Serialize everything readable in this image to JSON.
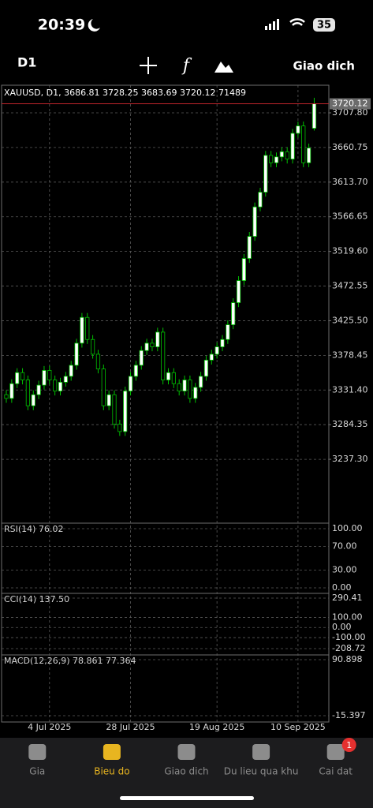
{
  "status_bar": {
    "time": "20:39",
    "battery": "35"
  },
  "toolbar": {
    "timeframe": "D1",
    "action": "Giao dich"
  },
  "chart_data": {
    "type": "candlestick",
    "title": "XAUUSD, D1, 3686.81 3728.25 3683.69 3720.12 71489",
    "categories": [
      null,
      null,
      null,
      null,
      null,
      null,
      null,
      null,
      "4 Jul 2025",
      null,
      null,
      null,
      null,
      null,
      null,
      null,
      null,
      null,
      null,
      null,
      null,
      null,
      null,
      "28 Jul 2025",
      null,
      null,
      null,
      null,
      null,
      null,
      null,
      null,
      null,
      null,
      null,
      null,
      null,
      null,
      null,
      "19 Aug 2025",
      null,
      null,
      null,
      null,
      null,
      null,
      null,
      null,
      null,
      null,
      null,
      null,
      null,
      null,
      "10 Sep 2025",
      null,
      null,
      null
    ],
    "open": [
      3325,
      3320,
      3340,
      3355,
      3345,
      3310,
      3325,
      3338,
      3358,
      3345,
      3330,
      3342,
      3350,
      3365,
      3395,
      3430,
      3400,
      3380,
      3360,
      3310,
      3325,
      3285,
      3275,
      3330,
      3350,
      3365,
      3385,
      3395,
      3390,
      3410,
      3345,
      3355,
      3340,
      3330,
      3345,
      3320,
      3335,
      3350,
      3372,
      3380,
      3390,
      3400,
      3420,
      3450,
      3480,
      3510,
      3540,
      3580,
      3600,
      3650,
      3640,
      3648,
      3655,
      3645,
      3680,
      3690,
      3640,
      3686.81
    ],
    "high": [
      3331,
      3346,
      3361,
      3361,
      3351,
      3331,
      3344,
      3364,
      3364,
      3351,
      3348,
      3356,
      3371,
      3401,
      3436,
      3436,
      3406,
      3386,
      3366,
      3331,
      3331,
      3291,
      3336,
      3356,
      3371,
      3391,
      3401,
      3401,
      3416,
      3416,
      3361,
      3361,
      3346,
      3351,
      3351,
      3341,
      3356,
      3378,
      3386,
      3396,
      3406,
      3426,
      3456,
      3486,
      3516,
      3546,
      3586,
      3606,
      3656,
      3656,
      3654,
      3661,
      3661,
      3686,
      3696,
      3696,
      3666,
      3728.25
    ],
    "low": [
      3314,
      3314,
      3334,
      3339,
      3304,
      3304,
      3319,
      3332,
      3339,
      3324,
      3324,
      3336,
      3344,
      3359,
      3389,
      3394,
      3374,
      3354,
      3304,
      3304,
      3279,
      3269,
      3269,
      3324,
      3344,
      3359,
      3379,
      3384,
      3384,
      3339,
      3339,
      3334,
      3324,
      3324,
      3314,
      3314,
      3329,
      3344,
      3366,
      3374,
      3384,
      3394,
      3414,
      3444,
      3474,
      3504,
      3534,
      3574,
      3594,
      3634,
      3634,
      3642,
      3639,
      3639,
      3674,
      3634,
      3634,
      3683.69
    ],
    "close": [
      3320,
      3340,
      3355,
      3345,
      3310,
      3325,
      3338,
      3358,
      3345,
      3330,
      3342,
      3350,
      3365,
      3395,
      3430,
      3400,
      3380,
      3360,
      3310,
      3325,
      3285,
      3275,
      3330,
      3350,
      3365,
      3385,
      3395,
      3390,
      3410,
      3345,
      3355,
      3340,
      3330,
      3345,
      3320,
      3335,
      3350,
      3372,
      3380,
      3390,
      3400,
      3420,
      3450,
      3480,
      3510,
      3540,
      3580,
      3600,
      3650,
      3640,
      3648,
      3655,
      3645,
      3680,
      3690,
      3640,
      3660,
      3720.12
    ],
    "up_color": "#ffffff",
    "down_color": "#000000",
    "outline_color": "#00c000",
    "ylim": [
      3150.6,
      3745.3
    ],
    "yticks": [
      {
        "value": 3707.8,
        "label": "3707.80"
      },
      3660.75,
      {
        "value": 3613.7,
        "label": "3613.70"
      },
      3566.65,
      {
        "value": 3519.6,
        "label": "3519.60"
      },
      3472.55,
      {
        "value": 3425.5,
        "label": "3425.50"
      },
      3378.45,
      {
        "value": 3331.4,
        "label": "3331.40"
      },
      3284.35,
      {
        "value": 3237.3,
        "label": "3237.30"
      }
    ],
    "grid": true
  },
  "indicators": [
    {
      "label": "RSI(14) 76.02",
      "ylim": [
        -9.3,
        109.3
      ],
      "yticks": [
        {
          "value": 100,
          "label": "100.00"
        },
        {
          "value": 70,
          "label": "70.00"
        },
        {
          "value": 30,
          "label": "30.00"
        },
        {
          "value": 0,
          "label": "0.00"
        }
      ]
    },
    {
      "label": "CCI(14) 137.50",
      "ylim": [
        -271.2,
        337.3
      ],
      "yticks": [
        290.41,
        {
          "value": 100,
          "label": "100.00"
        },
        {
          "value": 0,
          "label": "0.00"
        },
        {
          "value": -100,
          "label": "-100.00"
        },
        -208.72
      ]
    },
    {
      "label": "MACD(12,26,9) 78.861 77.364",
      "ylim": [
        -27.4,
        99.9
      ],
      "yticks": [
        90.898,
        -15.397
      ]
    }
  ],
  "tabs": [
    "Gia",
    "Bieu do",
    "Giao dich",
    "Du lieu qua khu",
    "Cai dat"
  ],
  "active_tab": 1,
  "badge": "1"
}
